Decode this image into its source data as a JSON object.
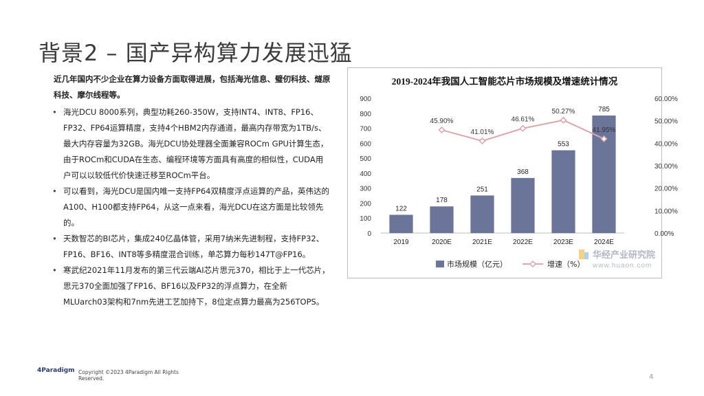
{
  "slide": {
    "title": "背景2 – 国产异构算力发展迅猛",
    "intro": "近几年国内不少企业在算力设备方面取得进展，包括海光信息、璧仞科技、燧原科技、摩尔线程等。",
    "bullets": [
      "海光DCU 8000系列，典型功耗260-350W，支持INT4、INT8、FP16、FP32、FP64运算精度，支持4个HBM2内存通道，最高内存带宽为1TB/s、最大内存容量为32GB。海光DCU协处理器全面兼容ROCm GPU计算生态，由于ROCm和CUDA在生态、编程环境等方面具有高度的相似性，CUDA用户可以以较低代价快速迁移至ROCm平台。",
      "可以看到，海光DCU是国内唯一支持FP64双精度浮点运算的产品，英伟达的A100、H100都支持FP64，从这一点来看，海光DCU在这方面是比较领先的。",
      "天数智芯的BI芯片，集成240亿晶体管，采用7纳米先进制程，支持FP32、FP16、BF16、INT8等多精度混合训练，单芯算力每秒147T@FP16。",
      "寒武纪2021年11月发布的第三代云端AI芯片思元370，相比于上一代芯片，思元370全面加强了FP16、BF16以及FP32的浮点算力，在全新MLUarch03架构和7nm先进工艺加持下，8位定点算力最高为256TOPS。"
    ],
    "footer": {
      "logo": "4Paradigm",
      "copyright": "Copyright ©2023 4Paradigm All Rights Reserved.",
      "page": "4"
    }
  },
  "chart_data": {
    "type": "bar",
    "title": "2019-2024年我国人工智能芯片市场规模及增速统计情况",
    "categories": [
      "2019",
      "2020E",
      "2021E",
      "2022E",
      "2023E",
      "2024E"
    ],
    "series": [
      {
        "name": "市场规模（亿元）",
        "type": "bar",
        "axis": "left",
        "color": "#6b7499",
        "values": [
          122,
          178,
          251,
          368,
          553,
          785
        ]
      },
      {
        "name": "增速（%）",
        "type": "line",
        "axis": "right",
        "color": "#d9a7ac",
        "values": [
          null,
          45.9,
          41.01,
          46.61,
          50.27,
          41.95
        ]
      }
    ],
    "value_labels": {
      "bars": [
        "122",
        "178",
        "251",
        "368",
        "553",
        "785"
      ],
      "line": [
        "",
        "45.90%",
        "41.01%",
        "46.61%",
        "50.27%",
        "41.95%"
      ]
    },
    "ylim_left": [
      0,
      900
    ],
    "yticks_left": [
      "0",
      "100",
      "200",
      "300",
      "400",
      "500",
      "600",
      "700",
      "800",
      "900"
    ],
    "ylim_right": [
      0,
      60
    ],
    "yticks_right": [
      "0.00%",
      "10.00%",
      "20.00%",
      "30.00%",
      "40.00%",
      "50.00%",
      "60.00%"
    ],
    "grid": false,
    "legend": "bottom",
    "watermark": {
      "name": "华经产业研究院",
      "url": "www.huaon.com"
    }
  }
}
